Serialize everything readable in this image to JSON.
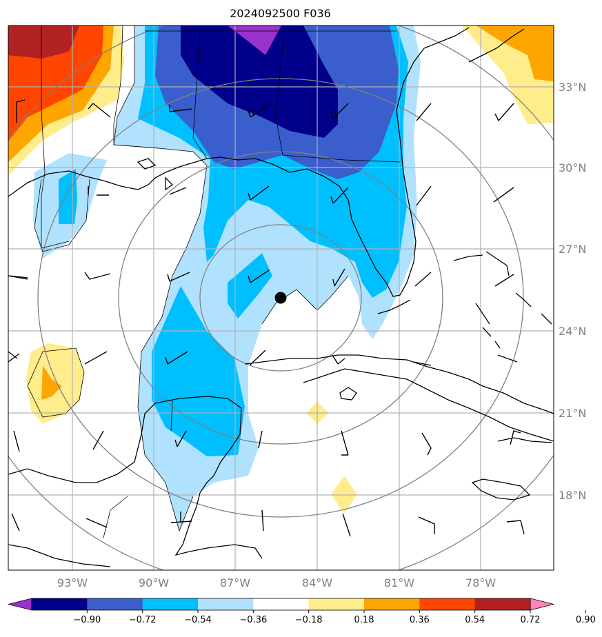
{
  "title": "2024092500 F036",
  "map": {
    "lat_labels": [
      "33°N",
      "30°N",
      "27°N",
      "24°N",
      "21°N",
      "18°N"
    ],
    "lon_labels": [
      "93°W",
      "90°W",
      "87°W",
      "84°W",
      "81°W",
      "78°W"
    ],
    "lat_values": [
      33,
      30,
      27,
      24,
      21,
      18
    ],
    "lon_values": [
      -93,
      -90,
      -87,
      -84,
      -81,
      -78
    ],
    "storm_center": {
      "lon": -85.3,
      "lat": 25.2
    }
  },
  "colorbar": {
    "tick_labels": [
      "−0.90",
      "−0.72",
      "−0.54",
      "−0.36",
      "−0.18",
      "0.18",
      "0.36",
      "0.54",
      "0.72",
      "0.90"
    ],
    "colors": [
      "#9932cc",
      "#00008b",
      "#3a5fcd",
      "#00bfff",
      "#b0e2ff",
      "#ffffff",
      "#ffec8b",
      "#ffa500",
      "#ff4500",
      "#b22222",
      "#ff83b4"
    ]
  }
}
